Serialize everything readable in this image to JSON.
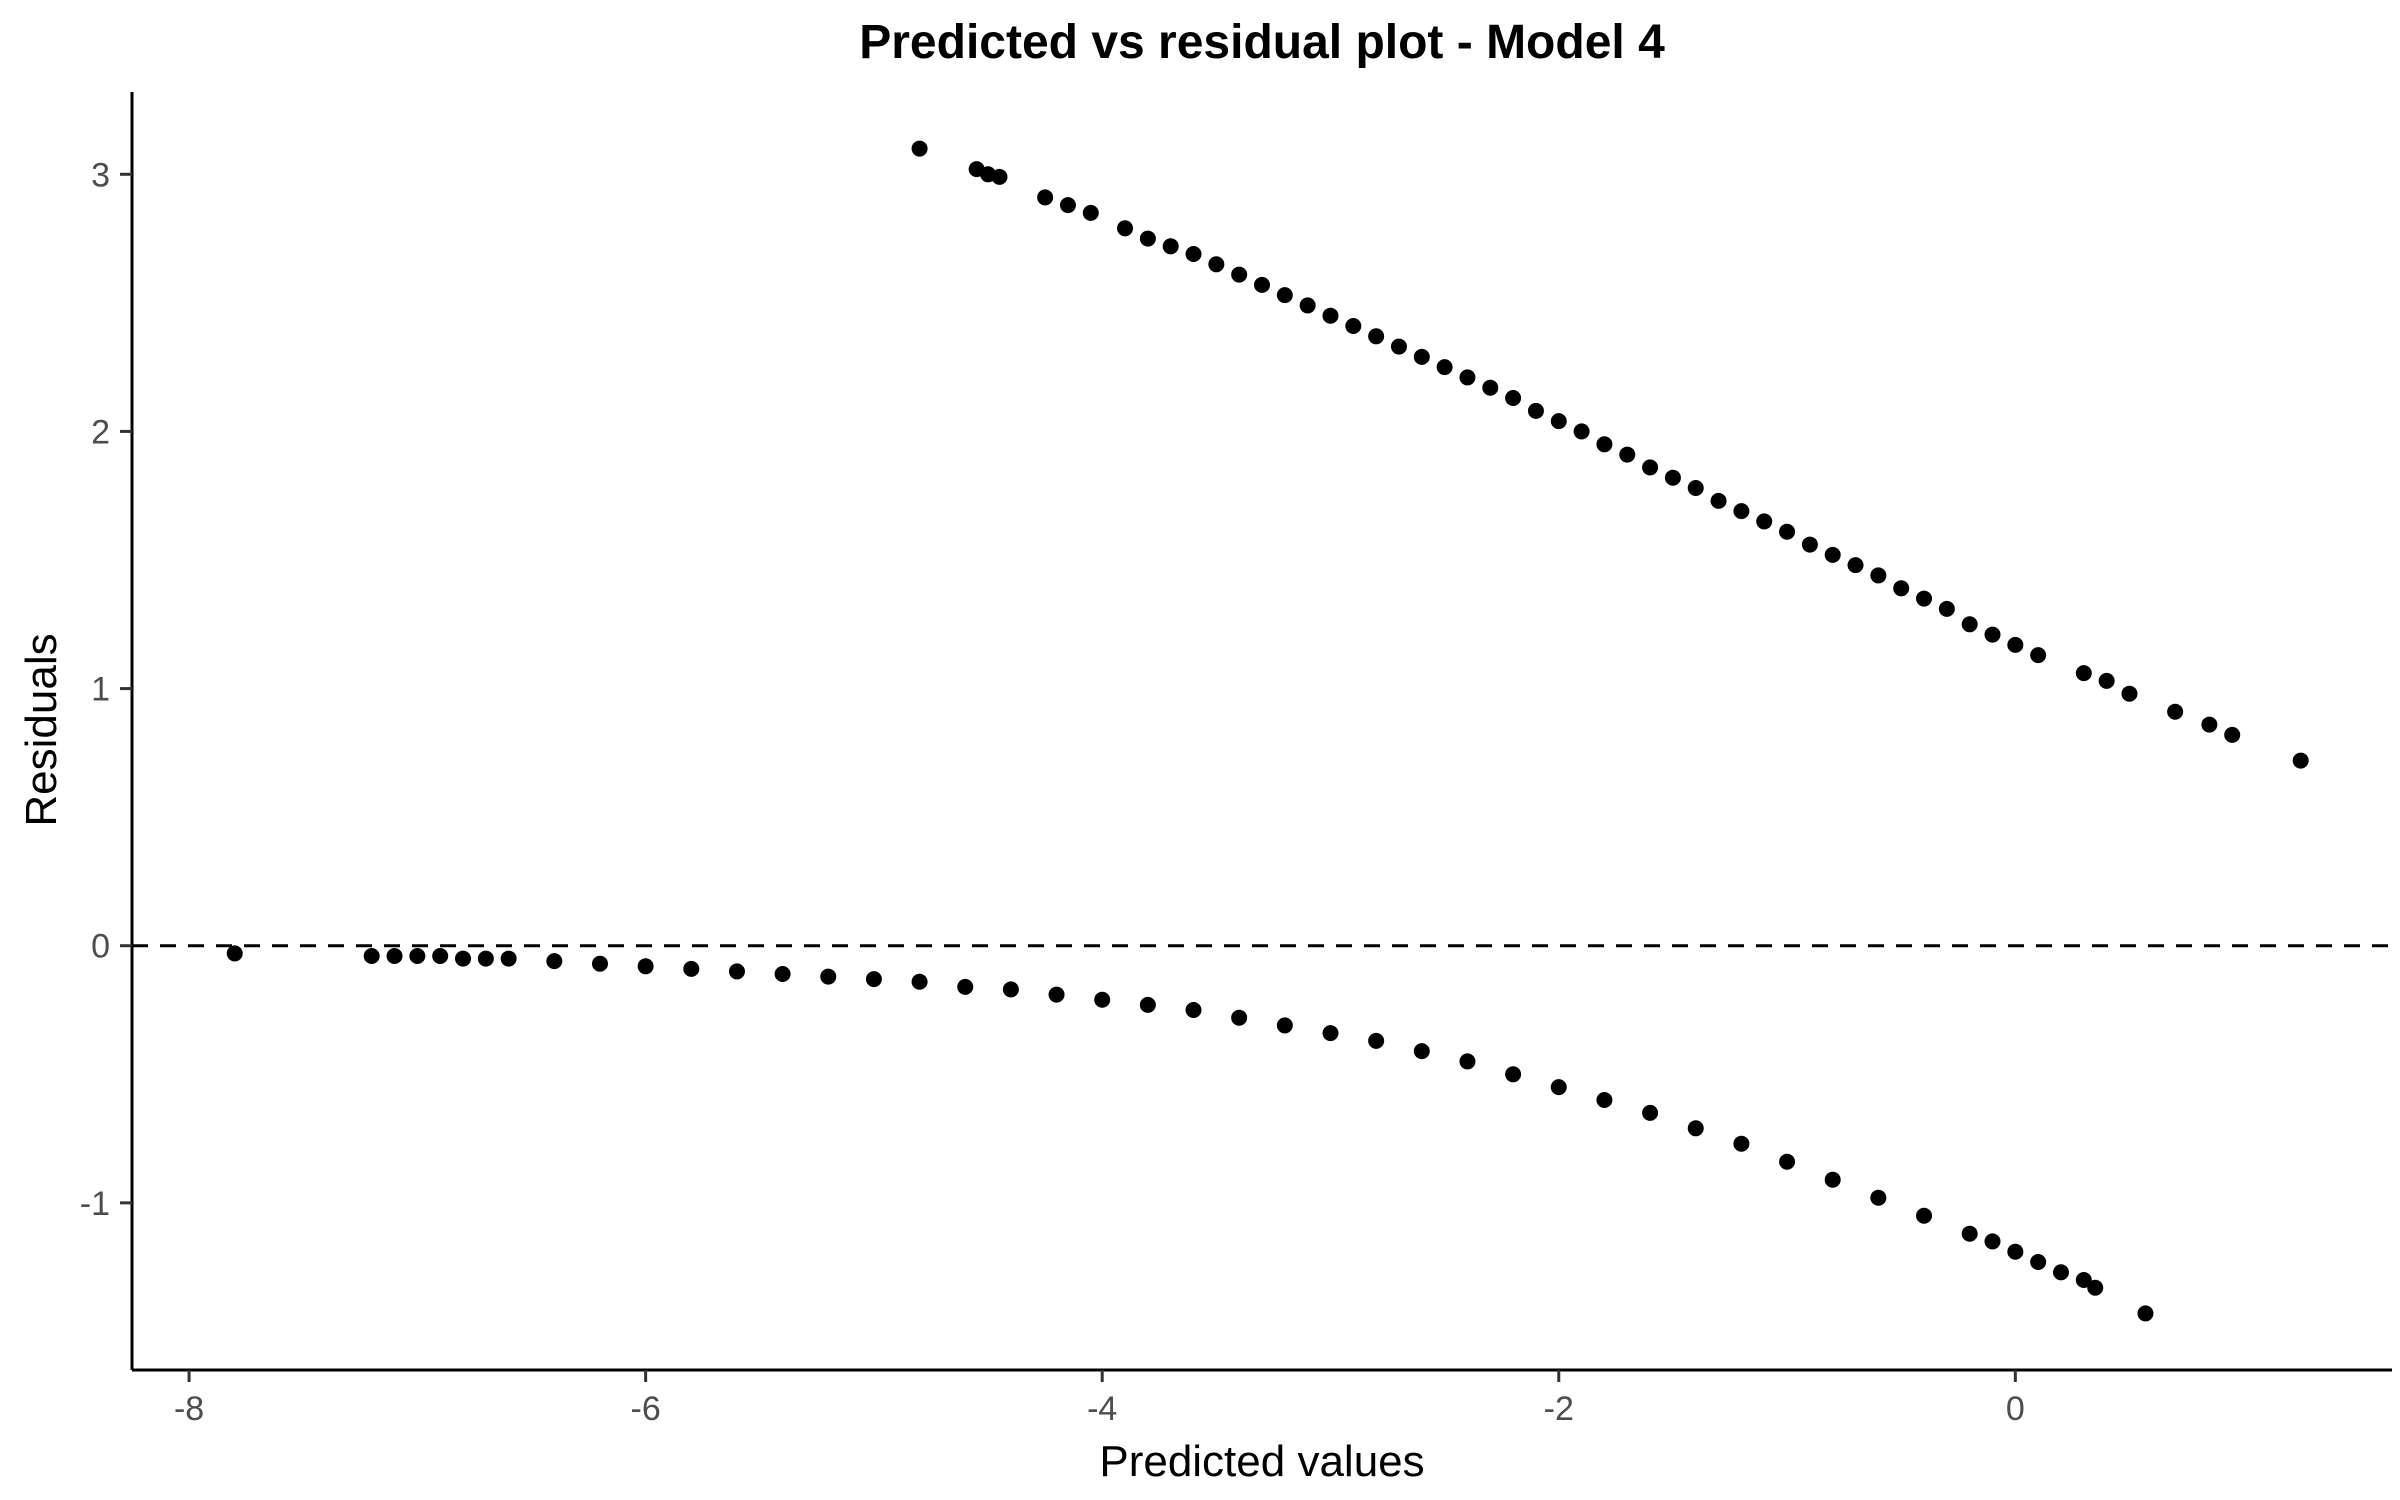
{
  "chart_data": {
    "type": "scatter",
    "title": "Predicted vs residual plot - Model 4",
    "xlabel": "Predicted values",
    "ylabel": "Residuals",
    "xlim": [
      -8.25,
      1.65
    ],
    "ylim": [
      -1.65,
      3.32
    ],
    "x_ticks": [
      -8,
      -6,
      -4,
      -2,
      0
    ],
    "y_ticks": [
      -1,
      0,
      1,
      2,
      3
    ],
    "grid": false,
    "legend": "none",
    "reference_line": {
      "y": 0,
      "style": "dashed"
    },
    "point_color": "#000000",
    "series": [
      {
        "points": [
          [
            -4.8,
            3.1
          ],
          [
            -4.55,
            3.02
          ],
          [
            -4.5,
            3.0
          ],
          [
            -4.45,
            2.99
          ],
          [
            -4.25,
            2.91
          ],
          [
            -4.15,
            2.88
          ],
          [
            -4.05,
            2.85
          ],
          [
            -3.9,
            2.79
          ],
          [
            -3.8,
            2.75
          ],
          [
            -3.7,
            2.72
          ],
          [
            -3.6,
            2.69
          ],
          [
            -3.5,
            2.65
          ],
          [
            -3.4,
            2.61
          ],
          [
            -3.3,
            2.57
          ],
          [
            -3.2,
            2.53
          ],
          [
            -3.1,
            2.49
          ],
          [
            -3.0,
            2.45
          ],
          [
            -2.9,
            2.41
          ],
          [
            -2.8,
            2.37
          ],
          [
            -2.7,
            2.33
          ],
          [
            -2.6,
            2.29
          ],
          [
            -2.5,
            2.25
          ],
          [
            -2.4,
            2.21
          ],
          [
            -2.3,
            2.17
          ],
          [
            -2.2,
            2.13
          ],
          [
            -2.1,
            2.08
          ],
          [
            -2.0,
            2.04
          ],
          [
            -1.9,
            2.0
          ],
          [
            -1.8,
            1.95
          ],
          [
            -1.7,
            1.91
          ],
          [
            -1.6,
            1.86
          ],
          [
            -1.5,
            1.82
          ],
          [
            -1.4,
            1.78
          ],
          [
            -1.3,
            1.73
          ],
          [
            -1.2,
            1.69
          ],
          [
            -1.1,
            1.65
          ],
          [
            -1.0,
            1.61
          ],
          [
            -0.9,
            1.56
          ],
          [
            -0.8,
            1.52
          ],
          [
            -0.7,
            1.48
          ],
          [
            -0.6,
            1.44
          ],
          [
            -0.5,
            1.39
          ],
          [
            -0.4,
            1.35
          ],
          [
            -0.3,
            1.31
          ],
          [
            -0.2,
            1.25
          ],
          [
            -0.1,
            1.21
          ],
          [
            0.0,
            1.17
          ],
          [
            0.1,
            1.13
          ],
          [
            0.3,
            1.06
          ],
          [
            0.4,
            1.03
          ],
          [
            0.5,
            0.98
          ],
          [
            0.7,
            0.91
          ],
          [
            0.85,
            0.86
          ],
          [
            0.95,
            0.82
          ],
          [
            1.25,
            0.72
          ]
        ]
      },
      {
        "points": [
          [
            -7.8,
            -0.03
          ],
          [
            -7.2,
            -0.04
          ],
          [
            -7.1,
            -0.04
          ],
          [
            -7.0,
            -0.04
          ],
          [
            -6.9,
            -0.04
          ],
          [
            -6.8,
            -0.05
          ],
          [
            -6.7,
            -0.05
          ],
          [
            -6.6,
            -0.05
          ],
          [
            -6.4,
            -0.06
          ],
          [
            -6.2,
            -0.07
          ],
          [
            -6.0,
            -0.08
          ],
          [
            -5.8,
            -0.09
          ],
          [
            -5.6,
            -0.1
          ],
          [
            -5.4,
            -0.11
          ],
          [
            -5.2,
            -0.12
          ],
          [
            -5.0,
            -0.13
          ],
          [
            -4.8,
            -0.14
          ],
          [
            -4.6,
            -0.16
          ],
          [
            -4.4,
            -0.17
          ],
          [
            -4.2,
            -0.19
          ],
          [
            -4.0,
            -0.21
          ],
          [
            -3.8,
            -0.23
          ],
          [
            -3.6,
            -0.25
          ],
          [
            -3.4,
            -0.28
          ],
          [
            -3.2,
            -0.31
          ],
          [
            -3.0,
            -0.34
          ],
          [
            -2.8,
            -0.37
          ],
          [
            -2.6,
            -0.41
          ],
          [
            -2.4,
            -0.45
          ],
          [
            -2.2,
            -0.5
          ],
          [
            -2.0,
            -0.55
          ],
          [
            -1.8,
            -0.6
          ],
          [
            -1.6,
            -0.65
          ],
          [
            -1.4,
            -0.71
          ],
          [
            -1.2,
            -0.77
          ],
          [
            -1.0,
            -0.84
          ],
          [
            -0.8,
            -0.91
          ],
          [
            -0.6,
            -0.98
          ],
          [
            -0.4,
            -1.05
          ],
          [
            -0.2,
            -1.12
          ],
          [
            -0.1,
            -1.15
          ],
          [
            0.0,
            -1.19
          ],
          [
            0.1,
            -1.23
          ],
          [
            0.2,
            -1.27
          ],
          [
            0.3,
            -1.3
          ],
          [
            0.35,
            -1.33
          ],
          [
            0.57,
            -1.43
          ]
        ]
      }
    ]
  }
}
